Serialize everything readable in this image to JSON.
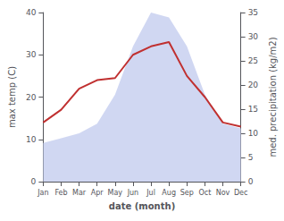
{
  "chart_data": {
    "type": "line",
    "xlabel": "date (month)",
    "ylabel": "max temp (C)",
    "y2label": "med. precipitation (kg/m2)",
    "categories": [
      "Jan",
      "Feb",
      "Mar",
      "Apr",
      "May",
      "Jun",
      "Jul",
      "Aug",
      "Sep",
      "Oct",
      "Nov",
      "Dec"
    ],
    "series": [
      {
        "type": "area",
        "axis": "y2",
        "color": "#c8d0f0",
        "values": [
          8,
          9,
          10,
          12,
          18,
          28,
          35,
          34,
          28,
          18,
          12,
          11
        ]
      },
      {
        "type": "line",
        "color": "#c03030",
        "values": [
          14,
          17,
          22,
          24,
          24.5,
          30,
          32,
          33,
          25,
          20,
          14,
          13
        ]
      }
    ],
    "ylim": [
      0,
      40
    ],
    "yticks": [
      0,
      10,
      20,
      30,
      40
    ],
    "y2lim": [
      0,
      35
    ],
    "y2ticks": [
      0,
      5,
      10,
      15,
      20,
      25,
      30,
      35
    ],
    "grid": false
  }
}
